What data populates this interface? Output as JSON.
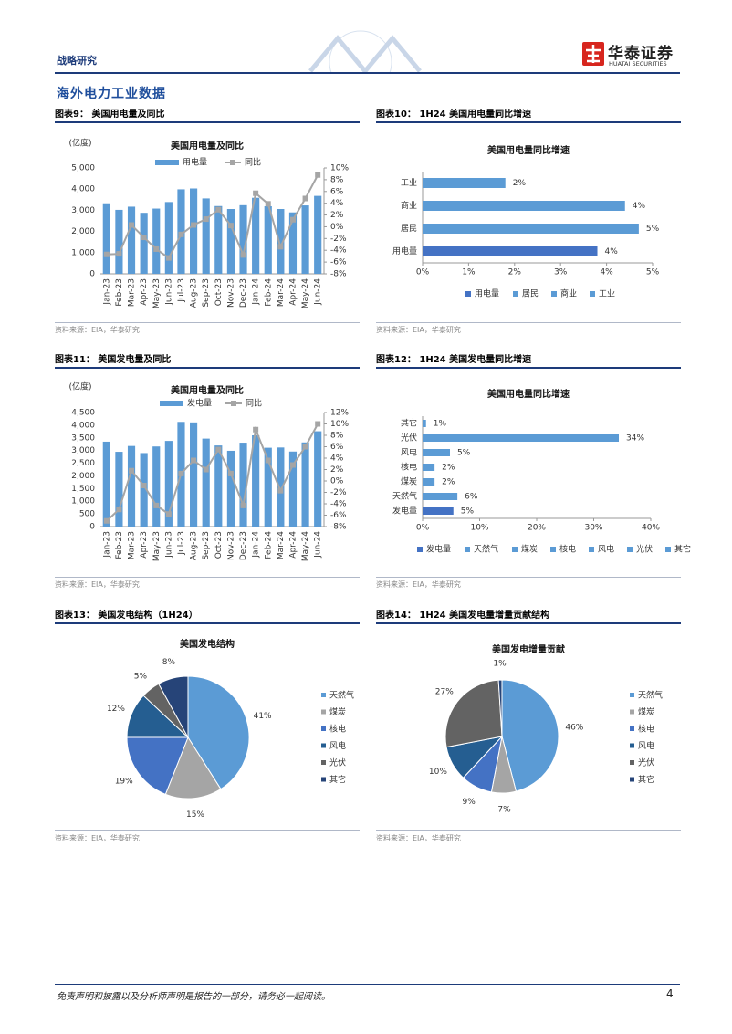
{
  "header": {
    "section": "战略研究",
    "logo": "华泰证券",
    "logo_en": "HUATAI SECURITIES",
    "title": "海外电力工业数据"
  },
  "footer": {
    "disclaimer": "免责声明和披露以及分析师声明是报告的一部分，请务必一起阅读。",
    "page": "4"
  },
  "chart_data": [
    {
      "type": "bar",
      "caption": "图表9： 美国用电量及同比",
      "title": "美国用电量及同比",
      "y_label": "(亿度)",
      "source": "资料来源：EIA，华泰研究",
      "categories": [
        "Jan-23",
        "Feb-23",
        "Mar-23",
        "Apr-23",
        "May-23",
        "Jun-23",
        "Jul-23",
        "Aug-23",
        "Sep-23",
        "Oct-23",
        "Nov-23",
        "Dec-23",
        "Jan-24",
        "Feb-24",
        "Mar-24",
        "Apr-24",
        "May-24",
        "Jun-24"
      ],
      "series": [
        {
          "name": "用电量",
          "color": "#5b9bd5",
          "type": "bar",
          "values": [
            3330,
            3020,
            3170,
            2880,
            3080,
            3390,
            3990,
            4030,
            3560,
            3200,
            3060,
            3240,
            3590,
            3190,
            3060,
            2900,
            3230,
            3680
          ]
        },
        {
          "name": "同比",
          "color": "#a5a5a5",
          "type": "line",
          "axis": "y2",
          "values": [
            -4.7,
            -4.6,
            0.3,
            -1.8,
            -3.8,
            -5.3,
            -1.3,
            0.3,
            1.3,
            2.9,
            0.2,
            -4.8,
            5.7,
            3.9,
            -3.4,
            1.2,
            4.8,
            8.8
          ]
        }
      ],
      "ylim": [
        0,
        5000
      ],
      "yticks": [
        0,
        {
          "value": 1000,
          "label": "1,000"
        },
        {
          "value": 2000,
          "label": "2,000"
        },
        {
          "value": 3000,
          "label": "3,000"
        },
        {
          "value": 4000,
          "label": "4,000"
        },
        {
          "value": 5000,
          "label": "5,000"
        }
      ],
      "y2lim": [
        -8,
        10
      ],
      "y2ticks": [
        {
          "value": -8,
          "label": "-8%"
        },
        {
          "value": -6,
          "label": "-6%"
        },
        {
          "value": -4,
          "label": "-4%"
        },
        {
          "value": -2,
          "label": "-2%"
        },
        {
          "value": 0,
          "label": "0%"
        },
        {
          "value": 2,
          "label": "2%"
        },
        {
          "value": 4,
          "label": "4%"
        },
        {
          "value": 6,
          "label": "6%"
        },
        {
          "value": 8,
          "label": "8%"
        },
        {
          "value": 10,
          "label": "10%"
        }
      ],
      "grid": false,
      "legend": "top"
    },
    {
      "type": "hbar",
      "caption": "图表10： 1H24 美国用电量同比增速",
      "title": "美国用电量同比增速",
      "source": "资料来源：EIA，华泰研究",
      "categories": [
        "工业",
        "商业",
        "居民",
        "用电量"
      ],
      "values": [
        1.8,
        4.4,
        4.7,
        3.8
      ],
      "value_labels": [
        "2%",
        "4%",
        "5%",
        "4%"
      ],
      "colors": [
        "#5b9bd5",
        "#5b9bd5",
        "#5b9bd5",
        "#4472c4"
      ],
      "xlim": [
        0,
        5
      ],
      "xticks": [
        {
          "value": 0,
          "label": "0%"
        },
        {
          "value": 1,
          "label": "1%"
        },
        {
          "value": 2,
          "label": "2%"
        },
        {
          "value": 3,
          "label": "3%"
        },
        {
          "value": 4,
          "label": "4%"
        },
        {
          "value": 5,
          "label": "5%"
        }
      ],
      "legend": "bottom"
    },
    {
      "type": "bar",
      "caption": "图表11： 美国发电量及同比",
      "title": "美国用电量及同比",
      "y_label": "(亿度)",
      "source": "资料来源：EIA，华泰研究",
      "categories": [
        "Jan-23",
        "Feb-23",
        "Mar-23",
        "Apr-23",
        "May-23",
        "Jun-23",
        "Jul-23",
        "Aug-23",
        "Sep-23",
        "Oct-23",
        "Nov-23",
        "Dec-23",
        "Jan-24",
        "Feb-24",
        "Mar-24",
        "Apr-24",
        "May-24",
        "Jun-24"
      ],
      "series": [
        {
          "name": "发电量",
          "color": "#5b9bd5",
          "type": "bar",
          "values": [
            3350,
            2950,
            3180,
            2900,
            3160,
            3380,
            4130,
            4110,
            3470,
            3200,
            2990,
            3310,
            3600,
            3110,
            3120,
            2960,
            3320,
            3760
          ]
        },
        {
          "name": "同比",
          "color": "#a5a5a5",
          "type": "line",
          "axis": "y2",
          "values": [
            -7.0,
            -5.0,
            1.8,
            -0.8,
            -4.3,
            -5.8,
            1.3,
            3.6,
            2.0,
            5.5,
            1.3,
            -4.3,
            9.0,
            3.6,
            -1.7,
            2.8,
            6.0,
            10.0
          ]
        }
      ],
      "ylim": [
        0,
        4500
      ],
      "yticks": [
        0,
        500,
        {
          "value": 1000,
          "label": "1,000"
        },
        {
          "value": 1500,
          "label": "1,500"
        },
        {
          "value": 2000,
          "label": "2,000"
        },
        {
          "value": 2500,
          "label": "2,500"
        },
        {
          "value": 3000,
          "label": "3,000"
        },
        {
          "value": 3500,
          "label": "3,500"
        },
        {
          "value": 4000,
          "label": "4,000"
        },
        {
          "value": 4500,
          "label": "4,500"
        }
      ],
      "y2lim": [
        -8,
        12
      ],
      "y2ticks": [
        {
          "value": -8,
          "label": "-8%"
        },
        {
          "value": -6,
          "label": "-6%"
        },
        {
          "value": -4,
          "label": "-4%"
        },
        {
          "value": -2,
          "label": "-2%"
        },
        {
          "value": 0,
          "label": "0%"
        },
        {
          "value": 2,
          "label": "2%"
        },
        {
          "value": 4,
          "label": "4%"
        },
        {
          "value": 6,
          "label": "6%"
        },
        {
          "value": 8,
          "label": "8%"
        },
        {
          "value": 10,
          "label": "10%"
        },
        {
          "value": 12,
          "label": "12%"
        }
      ],
      "grid": false,
      "legend": "top"
    },
    {
      "type": "hbar",
      "caption": "图表12： 1H24 美国发电量同比增速",
      "title": "美国用电量同比增速",
      "source": "资料来源：EIA，华泰研究",
      "categories": [
        "其它",
        "光伏",
        "风电",
        "核电",
        "煤炭",
        "天然气",
        "发电量"
      ],
      "values": [
        0.6,
        34.4,
        4.8,
        2.1,
        2.1,
        6.1,
        5.4
      ],
      "value_labels": [
        "1%",
        "34%",
        "5%",
        "2%",
        "2%",
        "6%",
        "5%"
      ],
      "colors": [
        "#5b9bd5",
        "#5b9bd5",
        "#5b9bd5",
        "#5b9bd5",
        "#5b9bd5",
        "#5b9bd5",
        "#4472c4"
      ],
      "xlim": [
        0,
        40
      ],
      "xticks": [
        {
          "value": 0,
          "label": "0%"
        },
        {
          "value": 10,
          "label": "10%"
        },
        {
          "value": 20,
          "label": "20%"
        },
        {
          "value": 30,
          "label": "30%"
        },
        {
          "value": 40,
          "label": "40%"
        }
      ],
      "legend": "bottom"
    },
    {
      "type": "pie",
      "caption": "图表13： 美国发电结构（1H24）",
      "title": "美国发电结构",
      "source": "资料来源：EIA，华泰研究",
      "categories": [
        "天然气",
        "煤炭",
        "核电",
        "风电",
        "光伏",
        "其它"
      ],
      "values": [
        41,
        15,
        19,
        12,
        5,
        8
      ],
      "value_labels": [
        "41%",
        "15%",
        "19%",
        "12%",
        "5%",
        "8%"
      ],
      "colors": [
        "#5b9bd5",
        "#a5a5a5",
        "#4472c4",
        "#255e91",
        "#636363",
        "#264478"
      ],
      "legend": "right"
    },
    {
      "type": "pie",
      "caption": "图表14： 1H24 美国发电量增量贡献结构",
      "title": "美国发电增量贡献",
      "source": "资料来源：EIA，华泰研究",
      "categories": [
        "天然气",
        "煤炭",
        "核电",
        "风电",
        "光伏",
        "其它"
      ],
      "values": [
        46,
        7,
        9,
        10,
        27,
        1
      ],
      "value_labels": [
        "46%",
        "7%",
        "9%",
        "10%",
        "27%",
        "1%"
      ],
      "colors": [
        "#5b9bd5",
        "#a5a5a5",
        "#4472c4",
        "#255e91",
        "#636363",
        "#264478"
      ],
      "legend": "right"
    }
  ]
}
